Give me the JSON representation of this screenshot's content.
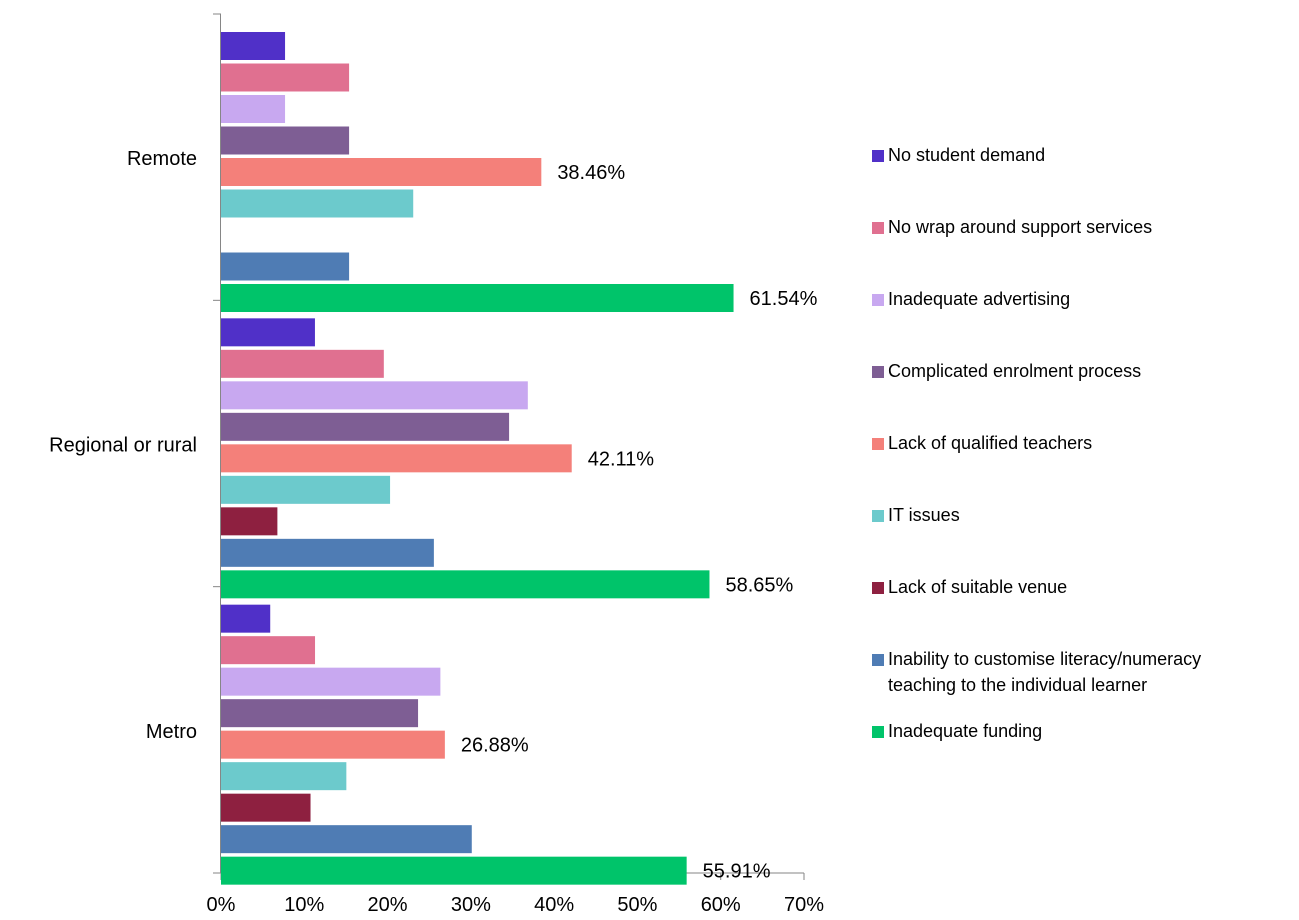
{
  "chart_data": {
    "type": "bar",
    "orientation": "horizontal",
    "categories": [
      "Remote",
      "Regional or rural",
      "Metro"
    ],
    "xlim": [
      0,
      70
    ],
    "x_ticks": [
      "0%",
      "10%",
      "20%",
      "30%",
      "40%",
      "50%",
      "60%",
      "70%"
    ],
    "series": [
      {
        "name": "No student demand",
        "color": "#5030C8",
        "values": [
          7.69,
          11.28,
          5.91
        ]
      },
      {
        "name": "No wrap around support services",
        "color": "#E07090",
        "values": [
          15.38,
          19.55,
          11.29
        ]
      },
      {
        "name": "Inadequate advertising",
        "color": "#C8A8F0",
        "values": [
          7.69,
          36.84,
          26.34
        ]
      },
      {
        "name": "Complicated enrolment process",
        "color": "#7E5E94",
        "values": [
          15.38,
          34.59,
          23.66
        ]
      },
      {
        "name": "Lack of qualified teachers",
        "color": "#F4807A",
        "values": [
          38.46,
          42.11,
          26.88
        ]
      },
      {
        "name": "IT issues",
        "color": "#6CCACC",
        "values": [
          23.08,
          20.3,
          15.05
        ]
      },
      {
        "name": "Lack of suitable venue",
        "color": "#8E2040",
        "values": [
          0,
          6.77,
          10.75
        ]
      },
      {
        "name": "Inability to customise literacy/numeracy teaching to the individual learner",
        "color": "#4F7CB4",
        "values": [
          15.38,
          25.56,
          30.11
        ]
      },
      {
        "name": "Inadequate funding",
        "color": "#00C46A",
        "values": [
          61.54,
          58.65,
          55.91
        ]
      }
    ],
    "data_labels": [
      {
        "series": "Lack of qualified teachers",
        "category": "Remote",
        "text": "38.46%"
      },
      {
        "series": "Inadequate funding",
        "category": "Remote",
        "text": "61.54%"
      },
      {
        "series": "Lack of qualified teachers",
        "category": "Regional or rural",
        "text": "42.11%"
      },
      {
        "series": "Inadequate funding",
        "category": "Regional or rural",
        "text": "58.65%"
      },
      {
        "series": "Lack of qualified teachers",
        "category": "Metro",
        "text": "26.88%"
      },
      {
        "series": "Inadequate funding",
        "category": "Metro",
        "text": "55.91%"
      }
    ],
    "legend": {
      "position": "right",
      "items": [
        "No student demand",
        "No wrap around support services",
        "Inadequate advertising",
        "Complicated enrolment process",
        "Lack of qualified teachers",
        "IT issues",
        "Lack of suitable venue",
        "Inability to customise literacy/numeracy\nteaching to the individual learner",
        "Inadequate funding"
      ]
    },
    "grid": false,
    "title": "",
    "xlabel": "",
    "ylabel": ""
  }
}
